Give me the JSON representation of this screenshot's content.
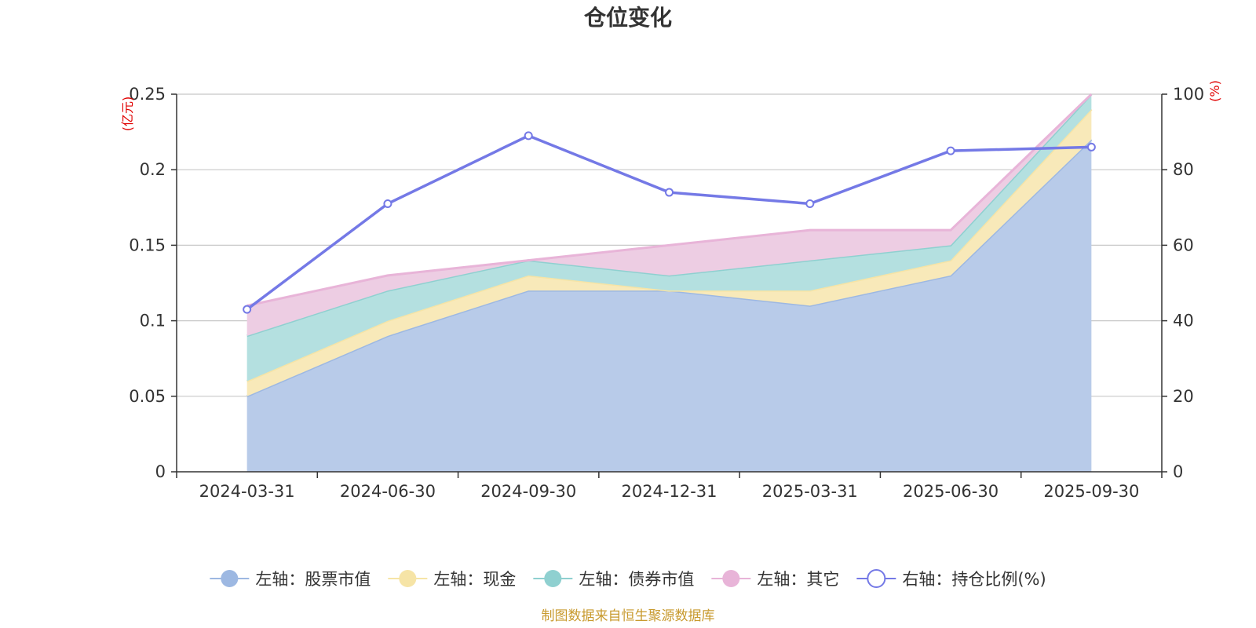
{
  "chart_data": {
    "type": "area",
    "title": "仓位变化",
    "categories": [
      "2024-03-31",
      "2024-06-30",
      "2024-09-30",
      "2024-12-31",
      "2025-03-31",
      "2025-06-30",
      "2025-09-30"
    ],
    "left_axis": {
      "unit": "(亿元)",
      "range": [
        0,
        0.25
      ],
      "ticks": [
        "0",
        "0.05",
        "0.1",
        "0.15",
        "0.2",
        "0.25"
      ]
    },
    "right_axis": {
      "unit": "(%)",
      "range": [
        0,
        100
      ],
      "ticks": [
        "0",
        "20",
        "40",
        "60",
        "80",
        "100"
      ]
    },
    "grid": true,
    "stacked": true,
    "legend_position": "bottom",
    "series": [
      {
        "name": "左轴：股票市值",
        "axis": "left",
        "kind": "stacked-area",
        "color": "#9db8e2",
        "fill": "#b8cbe9",
        "values": [
          0.05,
          0.09,
          0.12,
          0.12,
          0.11,
          0.13,
          0.22
        ]
      },
      {
        "name": "左轴：现金",
        "axis": "left",
        "kind": "stacked-area",
        "color": "#f6e4a6",
        "fill": "#f8e9b9",
        "values": [
          0.01,
          0.01,
          0.01,
          0.0,
          0.01,
          0.01,
          0.02
        ]
      },
      {
        "name": "左轴：债券市值",
        "axis": "left",
        "kind": "stacked-area",
        "color": "#8fd0d0",
        "fill": "#b4e0e0",
        "values": [
          0.03,
          0.02,
          0.01,
          0.01,
          0.02,
          0.01,
          0.01
        ]
      },
      {
        "name": "左轴：其它",
        "axis": "left",
        "kind": "stacked-area",
        "color": "#e8b4d8",
        "fill": "#edcde3",
        "values": [
          0.02,
          0.01,
          0.0,
          0.02,
          0.02,
          0.01,
          0.0
        ]
      },
      {
        "name": "右轴：持仓比例(%)",
        "axis": "right",
        "kind": "line",
        "color": "#7479e6",
        "values": [
          43,
          71,
          89,
          74,
          71,
          85,
          86
        ]
      }
    ],
    "source_note": "制图数据来自恒生聚源数据库"
  }
}
